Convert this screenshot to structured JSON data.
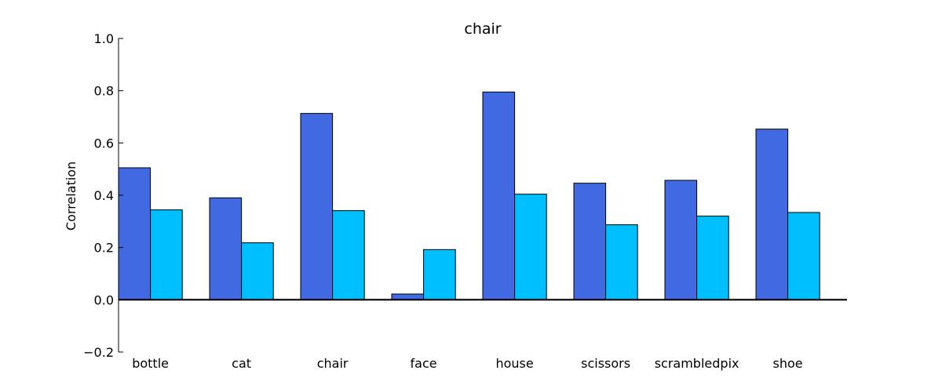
{
  "chart_data": {
    "type": "bar",
    "title": "chair",
    "xlabel": "",
    "ylabel": "Correlation",
    "categories": [
      "bottle",
      "cat",
      "chair",
      "face",
      "house",
      "scissors",
      "scrambledpix",
      "shoe"
    ],
    "series": [
      {
        "color": "#4169E1",
        "values": [
          0.505,
          0.39,
          0.713,
          0.022,
          0.795,
          0.446,
          0.457,
          0.653
        ]
      },
      {
        "color": "#00BFFF",
        "values": [
          0.344,
          0.218,
          0.341,
          0.192,
          0.404,
          0.287,
          0.32,
          0.334
        ]
      }
    ],
    "ylim": [
      -0.2,
      1.0
    ],
    "yticks": [
      "−0.2",
      "0.0",
      "0.2",
      "0.4",
      "0.6",
      "0.8",
      "1.0"
    ],
    "grid": false,
    "zero_line": true
  }
}
